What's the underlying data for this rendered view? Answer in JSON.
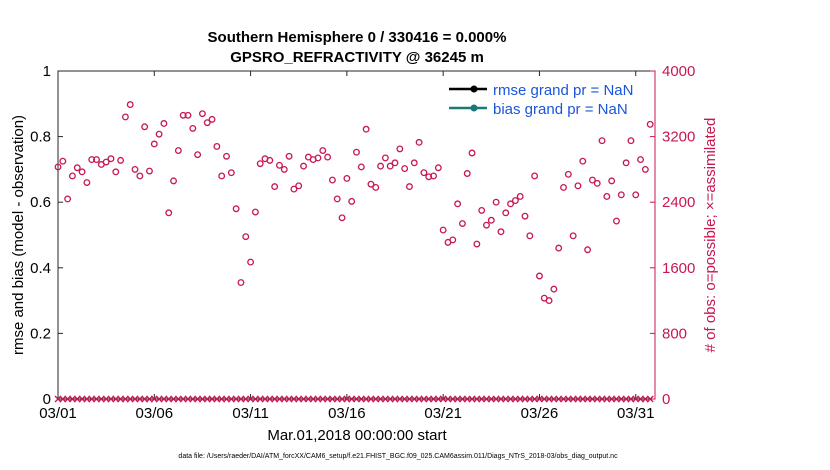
{
  "chart_data": {
    "type": "scatter",
    "title": "Southern Hemisphere 0 / 330416 = 0.000%",
    "subtitle": "GPSRO_REFRACTIVITY @ 36245 m",
    "xlabel": "Mar.01,2018 00:00:00 start",
    "ylabel_left": "rmse and bias (model - observation)",
    "ylabel_right": "# of obs: o=possible; ×=assimilated",
    "ylim_left": [
      0,
      1
    ],
    "ylim_right": [
      0,
      4000
    ],
    "xlim": [
      0,
      31
    ],
    "left_ticks": [
      "0",
      "0.2",
      "0.4",
      "0.6",
      "0.8",
      "1"
    ],
    "right_ticks": [
      "0",
      "800",
      "1600",
      "2400",
      "3200",
      "4000"
    ],
    "x_ticks": [
      {
        "value": 0,
        "label": "03/01"
      },
      {
        "value": 5,
        "label": "03/06"
      },
      {
        "value": 10,
        "label": "03/11"
      },
      {
        "value": 15,
        "label": "03/16"
      },
      {
        "value": 20,
        "label": "03/21"
      },
      {
        "value": 25,
        "label": "03/26"
      },
      {
        "value": 30,
        "label": "03/31"
      }
    ],
    "legend": [
      {
        "label": "rmse grand pr = NaN",
        "color": "#000000"
      },
      {
        "label": "bias grand pr = NaN",
        "color": "#1a7a7a"
      }
    ],
    "series": [
      {
        "name": "possible",
        "marker": "o",
        "color": "#c8174f",
        "axis": "right",
        "x": [
          0.0,
          0.25,
          0.5,
          0.75,
          1.0,
          1.25,
          1.5,
          1.75,
          2.0,
          2.25,
          2.5,
          2.75,
          3.0,
          3.25,
          3.5,
          3.75,
          4.0,
          4.25,
          4.5,
          4.75,
          5.0,
          5.25,
          5.5,
          5.75,
          6.0,
          6.25,
          6.5,
          6.75,
          7.0,
          7.25,
          7.5,
          7.75,
          8.0,
          8.25,
          8.5,
          8.75,
          9.0,
          9.25,
          9.5,
          9.75,
          10.0,
          10.25,
          10.5,
          10.75,
          11.0,
          11.25,
          11.5,
          11.75,
          12.0,
          12.25,
          12.5,
          12.75,
          13.0,
          13.25,
          13.5,
          13.75,
          14.0,
          14.25,
          14.5,
          14.75,
          15.0,
          15.25,
          15.5,
          15.75,
          16.0,
          16.25,
          16.5,
          16.75,
          17.0,
          17.25,
          17.5,
          17.75,
          18.0,
          18.25,
          18.5,
          18.75,
          19.0,
          19.25,
          19.5,
          19.75,
          20.0,
          20.25,
          20.5,
          20.75,
          21.0,
          21.25,
          21.5,
          21.75,
          22.0,
          22.25,
          22.5,
          22.75,
          23.0,
          23.25,
          23.5,
          23.75,
          24.0,
          24.25,
          24.5,
          24.75,
          25.0,
          25.25,
          25.5,
          25.75,
          26.0,
          26.25,
          26.5,
          26.75,
          27.0,
          27.25,
          27.5,
          27.75,
          28.0,
          28.25,
          28.5,
          28.75,
          29.0,
          29.25,
          29.5,
          29.75,
          30.0,
          30.25,
          30.5,
          30.75
        ],
        "y": [
          2830,
          2900,
          2440,
          2720,
          2820,
          2770,
          2640,
          2920,
          2920,
          2860,
          2890,
          2930,
          2770,
          2910,
          3440,
          3590,
          2800,
          2720,
          3320,
          2780,
          3110,
          3230,
          3360,
          2270,
          2660,
          3030,
          3460,
          3460,
          3300,
          2980,
          3480,
          3370,
          3410,
          3080,
          2720,
          2960,
          2760,
          2320,
          1420,
          1980,
          1670,
          2280,
          2870,
          2930,
          2910,
          2590,
          2850,
          2800,
          2960,
          2560,
          2600,
          2840,
          2950,
          2920,
          2940,
          3030,
          2950,
          2670,
          2440,
          2210,
          2690,
          2410,
          3010,
          2830,
          3290,
          2620,
          2580,
          2840,
          2940,
          2840,
          2880,
          3050,
          2810,
          2590,
          2880,
          3130,
          2760,
          2710,
          2720,
          2820,
          2060,
          1910,
          1940,
          2380,
          2140,
          2750,
          3000,
          1890,
          2300,
          2120,
          2180,
          2400,
          2040,
          2270,
          2380,
          2420,
          2470,
          2230,
          1990,
          2720,
          1500,
          1230,
          1200,
          1340,
          1840,
          2580,
          2740,
          1990,
          2600,
          2900,
          1820,
          2670,
          2630,
          3150,
          2470,
          2660,
          2170,
          2490,
          2880,
          3150,
          2490,
          2920,
          2800,
          3350
        ],
        "values_units": "count"
      },
      {
        "name": "assimilated",
        "marker": "x",
        "color": "#c8174f",
        "axis": "right",
        "values": "0 at every time step"
      }
    ]
  },
  "footnote": "data file: /Users/raeder/DAI/ATM_forcXX/CAM6_setup/f.e21.FHIST_BGC.f09_025.CAM6assim.011/Diags_NTrS_2018-03/obs_diag_output.nc"
}
